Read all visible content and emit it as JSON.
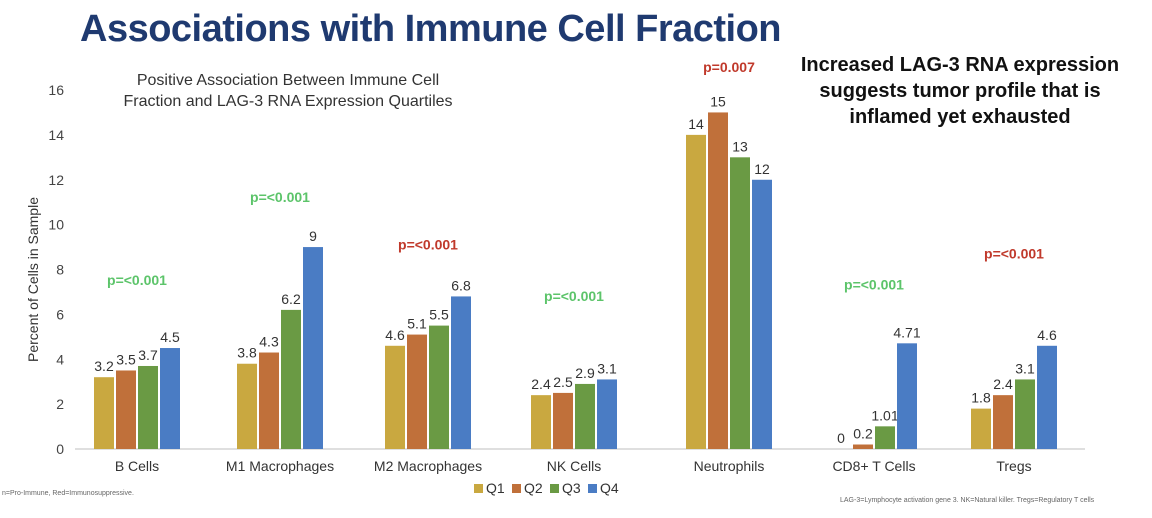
{
  "page": {
    "title": "Associations with Immune Cell Fraction",
    "side_note": "Increased LAG-3 RNA expression suggests tumor profile that is inflamed yet exhausted",
    "footnote_left": "n=Pro-Immune, Red=Immunosuppressive.",
    "footnote_right": "LAG-3=Lymphocyte activation gene 3. NK=Natural killer. Tregs=Regulatory T cells"
  },
  "chart_data": {
    "type": "bar",
    "title": "Positive Association Between Immune Cell Fraction and LAG-3 RNA Expression Quartiles",
    "xlabel": "",
    "ylabel": "Percent of Cells in Sample",
    "ylim": [
      0,
      16
    ],
    "yticks": [
      0,
      2,
      4,
      6,
      8,
      10,
      12,
      14,
      16
    ],
    "grid": false,
    "legend_position": "bottom",
    "categories": [
      "B Cells",
      "M1 Macrophages",
      "M2 Macrophages",
      "NK Cells",
      "Neutrophils",
      "CD8+ T Cells",
      "Tregs"
    ],
    "series": [
      {
        "name": "Q1",
        "color": "#c9a840",
        "values": [
          3.2,
          3.8,
          4.6,
          2.4,
          14,
          0,
          1.8
        ],
        "labels": [
          "3.2",
          "3.8",
          "4.6",
          "2.4",
          "14",
          "0",
          "1.8"
        ]
      },
      {
        "name": "Q2",
        "color": "#c0703a",
        "values": [
          3.5,
          4.3,
          5.1,
          2.5,
          15,
          0.2,
          2.4
        ],
        "labels": [
          "3.5",
          "4.3",
          "5.1",
          "2.5",
          "15",
          "0.2",
          "2.4"
        ]
      },
      {
        "name": "Q3",
        "color": "#6a9a44",
        "values": [
          3.7,
          6.2,
          5.5,
          2.9,
          13,
          1.01,
          3.1
        ],
        "labels": [
          "3.7",
          "6.2",
          "5.5",
          "2.9",
          "13",
          "1.01",
          "3.1"
        ]
      },
      {
        "name": "Q4",
        "color": "#4a7cc4",
        "values": [
          4.5,
          9,
          6.8,
          3.1,
          12,
          4.71,
          4.6
        ],
        "labels": [
          "4.5",
          "9",
          "6.8",
          "3.1",
          "12",
          "4.71",
          "4.6"
        ]
      }
    ],
    "annotations": [
      {
        "category": "B Cells",
        "text": "p=<0.001",
        "color": "#5cc46a",
        "y": 7.3
      },
      {
        "category": "M1 Macrophages",
        "text": "p=<0.001",
        "color": "#5cc46a",
        "y": 11
      },
      {
        "category": "M2 Macrophages",
        "text": "p=<0.001",
        "color": "#c0392b",
        "y": 8.9
      },
      {
        "category": "NK Cells",
        "text": "p=<0.001",
        "color": "#5cc46a",
        "y": 6.6
      },
      {
        "category": "Neutrophils",
        "text": "p=0.007",
        "color": "#c0392b",
        "y": 16.8
      },
      {
        "category": "CD8+ T Cells",
        "text": "p=<0.001",
        "color": "#5cc46a",
        "y": 7.1
      },
      {
        "category": "Tregs",
        "text": "p=<0.001",
        "color": "#c0392b",
        "y": 8.5
      }
    ]
  }
}
